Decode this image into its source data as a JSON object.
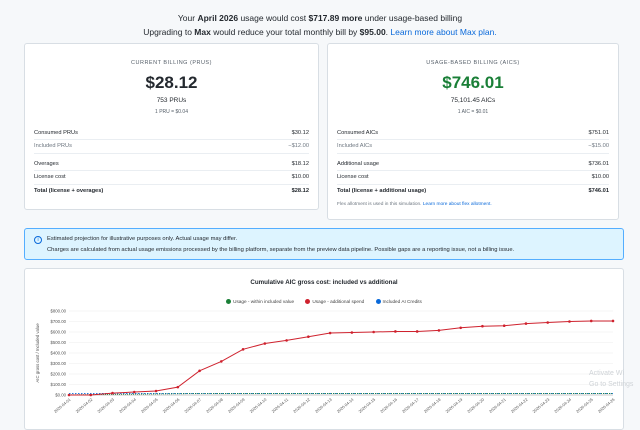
{
  "banner": {
    "pre": "Your ",
    "month": "April 2026",
    "mid": " usage would cost ",
    "amount": "$717.89 more",
    "post": " under usage-based billing",
    "upgrade_pre": "Upgrading to ",
    "plan": "Max",
    "upgrade_mid": " would reduce your total monthly bill by ",
    "savings": "$95.00",
    "period": ".",
    "link": "Learn more about Max plan."
  },
  "current": {
    "label": "CURRENT BILLING (PRUS)",
    "amount": "$28.12",
    "sub": "753 PRUs",
    "rate": "1 PRU = $0.04",
    "rows": [
      {
        "label": "Consumed PRUs",
        "value": "$30.12"
      },
      {
        "label": "Included PRUs",
        "value": "−$12.00"
      },
      {
        "label": "Overages",
        "value": "$18.12"
      },
      {
        "label": "License cost",
        "value": "$10.00"
      },
      {
        "label": "Total (license + overages)",
        "value": "$28.12"
      }
    ]
  },
  "usage": {
    "label": "USAGE-BASED BILLING (AICS)",
    "amount": "$746.01",
    "sub": "75,101.45 AICs",
    "rate": "1 AIC = $0.01",
    "rows": [
      {
        "label": "Consumed AICs",
        "value": "$751.01"
      },
      {
        "label": "Included AICs",
        "value": "−$15.00"
      },
      {
        "label": "Additional usage",
        "value": "$736.01"
      },
      {
        "label": "License cost",
        "value": "$10.00"
      },
      {
        "label": "Total (license + additional usage)",
        "value": "$746.01"
      }
    ],
    "note": "Flex allotment is used in this simulation.",
    "note_link": "Learn more about flex allotment."
  },
  "info": {
    "icon": "info-icon",
    "line1": "Estimated projection for illustrative purposes only. Actual usage may differ.",
    "line2": "Charges are calculated from actual usage emissions processed by the billing platform, separate from the preview data pipeline. Possible gaps are a reporting issue, not a billing issue."
  },
  "chart_data": {
    "type": "line",
    "title": "Cumulative AIC gross cost: included vs additional",
    "ylabel": "AIC gross cost / Included value",
    "ylim": [
      0,
      800
    ],
    "yticks": [
      "$0.00",
      "$100.00",
      "$200.00",
      "$300.00",
      "$400.00",
      "$500.00",
      "$600.00",
      "$700.00",
      "$800.00"
    ],
    "legend_position": "top",
    "x": [
      "2026-04-01",
      "2026-04-02",
      "2026-04-03",
      "2026-04-04",
      "2026-04-05",
      "2026-04-06",
      "2026-04-07",
      "2026-04-08",
      "2026-04-09",
      "2026-04-10",
      "2026-04-11",
      "2026-04-12",
      "2026-04-13",
      "2026-04-14",
      "2026-04-15",
      "2026-04-16",
      "2026-04-17",
      "2026-04-18",
      "2026-04-19",
      "2026-04-20",
      "2026-04-21",
      "2026-04-22",
      "2026-04-23",
      "2026-04-24",
      "2026-04-25",
      "2026-04-26"
    ],
    "series": [
      {
        "name": "Usage - within included value",
        "color": "#1a7f37",
        "values": [
          2,
          4,
          6,
          8,
          10,
          12,
          14,
          15,
          15,
          15,
          15,
          15,
          15,
          15,
          15,
          15,
          15,
          15,
          15,
          15,
          15,
          15,
          15,
          15,
          15,
          15
        ]
      },
      {
        "name": "Usage - additional spend",
        "color": "#cf222e",
        "values": [
          0,
          0,
          18,
          28,
          38,
          75,
          230,
          320,
          435,
          490,
          520,
          555,
          590,
          595,
          600,
          605,
          605,
          615,
          640,
          655,
          660,
          680,
          690,
          700,
          705,
          705
        ]
      },
      {
        "name": "Included AI Credits",
        "color": "#0969da",
        "values": [
          15,
          15,
          15,
          15,
          15,
          15,
          15,
          15,
          15,
          15,
          15,
          15,
          15,
          15,
          15,
          15,
          15,
          15,
          15,
          15,
          15,
          15,
          15,
          15,
          15,
          15
        ]
      }
    ]
  },
  "watermark": {
    "line1": "Activate Wi",
    "line2": "Go to Settings"
  }
}
